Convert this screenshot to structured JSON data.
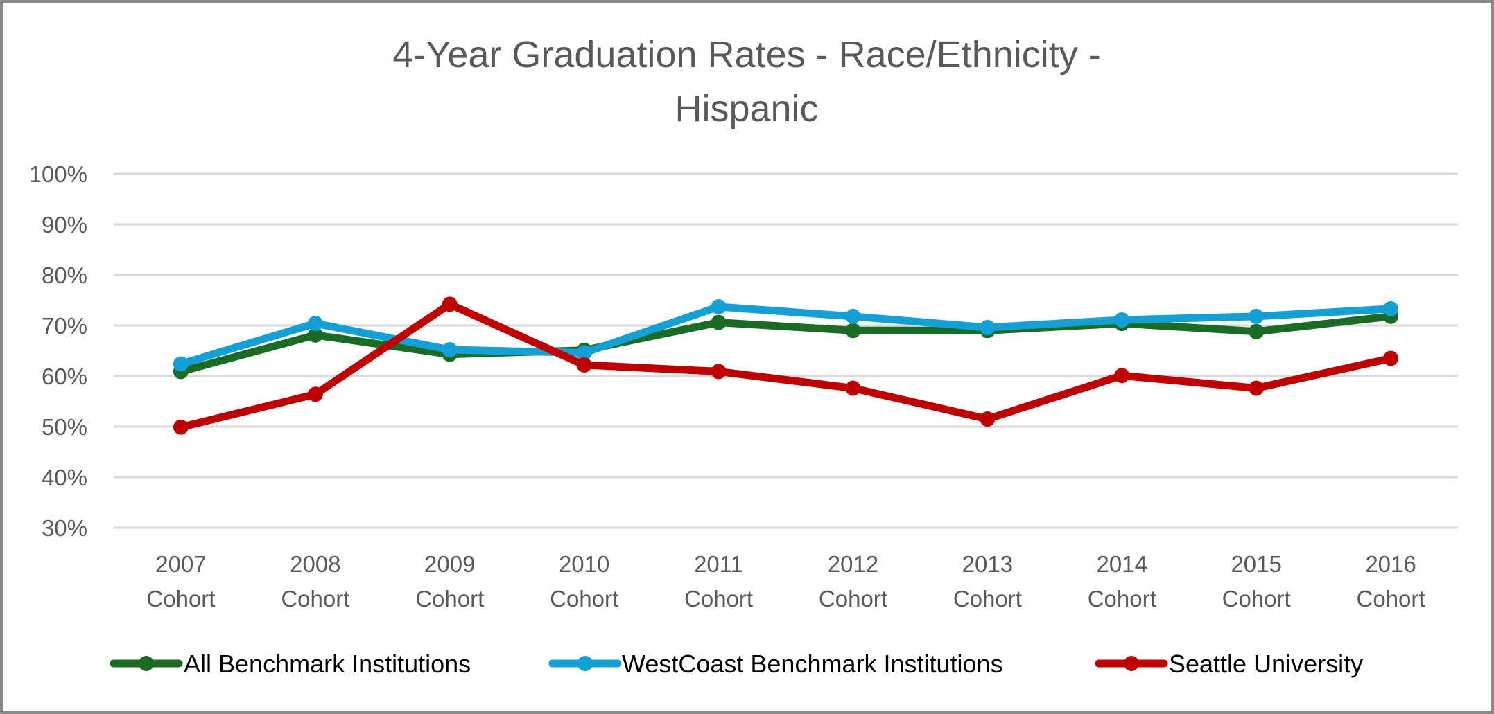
{
  "chart_data": {
    "type": "line",
    "title": "4-Year Graduation Rates - Race/Ethnicity - Hispanic",
    "title_lines": [
      "4-Year Graduation Rates - Race/Ethnicity -",
      "Hispanic"
    ],
    "xlabel": "",
    "ylabel": "",
    "ylim": [
      0.3,
      1.0
    ],
    "y_ticks": [
      1.0,
      0.9,
      0.8,
      0.7,
      0.6,
      0.5,
      0.4,
      0.3
    ],
    "y_tick_labels": [
      "100%",
      "90%",
      "80%",
      "70%",
      "60%",
      "50%",
      "40%",
      "30%"
    ],
    "grid": true,
    "legend_position": "bottom",
    "categories": [
      [
        "2007",
        "Cohort"
      ],
      [
        "2008",
        "Cohort"
      ],
      [
        "2009",
        "Cohort"
      ],
      [
        "2010",
        "Cohort"
      ],
      [
        "2011",
        "Cohort"
      ],
      [
        "2012",
        "Cohort"
      ],
      [
        "2013",
        "Cohort"
      ],
      [
        "2014",
        "Cohort"
      ],
      [
        "2015",
        "Cohort"
      ],
      [
        "2016",
        "Cohort"
      ]
    ],
    "series": [
      {
        "name": "All Benchmark Institutions",
        "color": "#1a6b24",
        "values": [
          0.609,
          0.681,
          0.643,
          0.651,
          0.706,
          0.69,
          0.69,
          0.704,
          0.688,
          0.718
        ]
      },
      {
        "name": "WestCoast Benchmark Institutions",
        "color": "#12a0d7",
        "values": [
          0.624,
          0.704,
          0.652,
          0.646,
          0.737,
          0.718,
          0.696,
          0.711,
          0.718,
          0.733
        ]
      },
      {
        "name": "Seattle University",
        "color": "#c00000",
        "values": [
          0.499,
          0.564,
          0.742,
          0.622,
          0.609,
          0.576,
          0.515,
          0.601,
          0.576,
          0.635
        ]
      }
    ]
  }
}
